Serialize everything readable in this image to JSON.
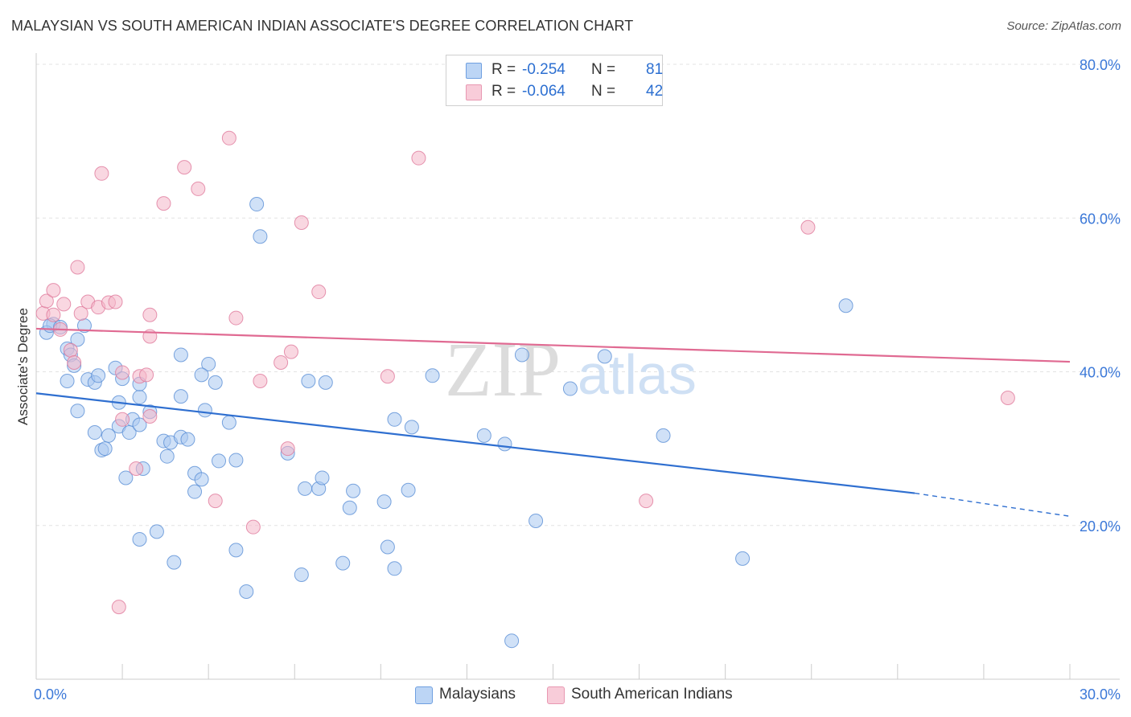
{
  "title": "MALAYSIAN VS SOUTH AMERICAN INDIAN ASSOCIATE'S DEGREE CORRELATION CHART",
  "source": "Source: ZipAtlas.com",
  "legend_top": {
    "rows": [
      {
        "r_label": "R =",
        "r_value": "-0.254",
        "n_label": "N =",
        "n_value": "81",
        "color": "#a9c8f0"
      },
      {
        "r_label": "R =",
        "r_value": "-0.064",
        "n_label": "N =",
        "n_value": "42",
        "color": "#f4b6c9"
      }
    ]
  },
  "legend_bottom": [
    {
      "label": "Malaysians",
      "color": "#a9c8f0"
    },
    {
      "label": "South American Indians",
      "color": "#f4b6c9"
    }
  ],
  "chart_data": {
    "type": "scatter",
    "title": "MALAYSIAN VS SOUTH AMERICAN INDIAN ASSOCIATE'S DEGREE CORRELATION CHART",
    "xlabel": "",
    "ylabel": "Associate's Degree",
    "xlim": [
      0,
      30
    ],
    "ylim": [
      0,
      80
    ],
    "x_tick_labels": [
      {
        "value": 0,
        "label": "0.0%"
      },
      {
        "value": 30,
        "label": "30.0%"
      }
    ],
    "y_tick_labels": [
      {
        "value": 20,
        "label": "20.0%"
      },
      {
        "value": 40,
        "label": "40.0%"
      },
      {
        "value": 60,
        "label": "60.0%"
      },
      {
        "value": 80,
        "label": "80.0%"
      }
    ],
    "watermark": {
      "zip": "ZIP",
      "atlas": "atlas"
    },
    "series": [
      {
        "name": "Malaysians",
        "color": "#a9c8f0",
        "stroke": "#5a8fd6",
        "trend_color": "#2f6fd0",
        "trend": {
          "x0": 0,
          "y0": 37.2,
          "x1": 25.5,
          "y1": 24.2,
          "dash_to_x": 30,
          "dash_to_y": 21.2
        },
        "points": [
          [
            0.5,
            46.2
          ],
          [
            0.3,
            45.1
          ],
          [
            0.4,
            46.0
          ],
          [
            0.7,
            45.8
          ],
          [
            0.9,
            43.0
          ],
          [
            1.0,
            42.2
          ],
          [
            1.1,
            40.8
          ],
          [
            1.2,
            44.2
          ],
          [
            1.4,
            46.0
          ],
          [
            0.9,
            38.8
          ],
          [
            1.5,
            39.0
          ],
          [
            1.7,
            38.6
          ],
          [
            1.8,
            39.5
          ],
          [
            2.3,
            40.5
          ],
          [
            2.5,
            39.1
          ],
          [
            1.2,
            34.9
          ],
          [
            2.4,
            36.0
          ],
          [
            3.0,
            36.7
          ],
          [
            3.0,
            38.4
          ],
          [
            4.2,
            42.2
          ],
          [
            5.0,
            41.0
          ],
          [
            4.8,
            39.6
          ],
          [
            5.2,
            38.6
          ],
          [
            4.2,
            36.8
          ],
          [
            4.9,
            35.0
          ],
          [
            6.4,
            61.8
          ],
          [
            6.5,
            57.6
          ],
          [
            1.7,
            32.1
          ],
          [
            2.1,
            31.7
          ],
          [
            2.4,
            32.9
          ],
          [
            2.7,
            32.1
          ],
          [
            2.8,
            33.8
          ],
          [
            3.0,
            33.1
          ],
          [
            3.3,
            34.8
          ],
          [
            3.7,
            31.0
          ],
          [
            3.9,
            30.8
          ],
          [
            4.2,
            31.5
          ],
          [
            4.4,
            31.2
          ],
          [
            5.6,
            33.4
          ],
          [
            1.9,
            29.8
          ],
          [
            2.0,
            30.0
          ],
          [
            3.1,
            27.4
          ],
          [
            3.8,
            29.0
          ],
          [
            4.6,
            26.8
          ],
          [
            4.8,
            26.0
          ],
          [
            5.3,
            28.4
          ],
          [
            5.8,
            28.5
          ],
          [
            7.3,
            29.4
          ],
          [
            2.6,
            26.2
          ],
          [
            4.6,
            24.4
          ],
          [
            7.8,
            24.8
          ],
          [
            8.2,
            24.8
          ],
          [
            8.3,
            26.2
          ],
          [
            9.2,
            24.5
          ],
          [
            10.1,
            23.1
          ],
          [
            10.8,
            24.6
          ],
          [
            9.1,
            22.3
          ],
          [
            7.9,
            38.8
          ],
          [
            8.4,
            38.6
          ],
          [
            11.5,
            39.5
          ],
          [
            10.4,
            33.8
          ],
          [
            10.9,
            32.8
          ],
          [
            13.0,
            31.7
          ],
          [
            13.6,
            30.6
          ],
          [
            14.1,
            42.2
          ],
          [
            15.5,
            37.8
          ],
          [
            16.5,
            42.0
          ],
          [
            18.2,
            31.7
          ],
          [
            23.5,
            48.6
          ],
          [
            14.5,
            20.6
          ],
          [
            3.0,
            18.2
          ],
          [
            3.5,
            19.2
          ],
          [
            4.0,
            15.2
          ],
          [
            5.8,
            16.8
          ],
          [
            6.1,
            11.4
          ],
          [
            7.7,
            13.6
          ],
          [
            8.9,
            15.1
          ],
          [
            10.2,
            17.2
          ],
          [
            10.4,
            14.4
          ],
          [
            20.5,
            15.7
          ],
          [
            13.8,
            5.0
          ]
        ]
      },
      {
        "name": "South American Indians",
        "color": "#f4b6c9",
        "stroke": "#e07a9c",
        "trend_color": "#e06a92",
        "trend": {
          "x0": 0,
          "y0": 45.6,
          "x1": 30,
          "y1": 41.3
        },
        "points": [
          [
            0.2,
            47.6
          ],
          [
            0.3,
            49.2
          ],
          [
            0.5,
            47.4
          ],
          [
            0.5,
            50.6
          ],
          [
            0.8,
            48.8
          ],
          [
            0.7,
            45.5
          ],
          [
            1.0,
            42.8
          ],
          [
            1.1,
            41.2
          ],
          [
            1.3,
            47.6
          ],
          [
            1.5,
            49.1
          ],
          [
            1.8,
            48.4
          ],
          [
            2.1,
            49.0
          ],
          [
            2.3,
            49.1
          ],
          [
            1.2,
            53.6
          ],
          [
            1.9,
            65.8
          ],
          [
            2.5,
            39.9
          ],
          [
            3.0,
            39.4
          ],
          [
            3.2,
            39.6
          ],
          [
            3.3,
            47.4
          ],
          [
            3.3,
            44.6
          ],
          [
            3.7,
            61.9
          ],
          [
            4.3,
            66.6
          ],
          [
            4.7,
            63.8
          ],
          [
            5.6,
            70.4
          ],
          [
            5.8,
            47.0
          ],
          [
            6.5,
            38.8
          ],
          [
            7.1,
            41.2
          ],
          [
            7.4,
            42.6
          ],
          [
            7.7,
            59.4
          ],
          [
            8.2,
            50.4
          ],
          [
            10.2,
            39.4
          ],
          [
            11.1,
            67.8
          ],
          [
            2.5,
            33.8
          ],
          [
            3.3,
            34.2
          ],
          [
            2.9,
            27.4
          ],
          [
            5.2,
            23.2
          ],
          [
            6.3,
            19.8
          ],
          [
            7.3,
            30.0
          ],
          [
            17.7,
            23.2
          ],
          [
            22.4,
            58.8
          ],
          [
            28.2,
            36.6
          ],
          [
            2.4,
            9.4
          ]
        ]
      }
    ]
  }
}
